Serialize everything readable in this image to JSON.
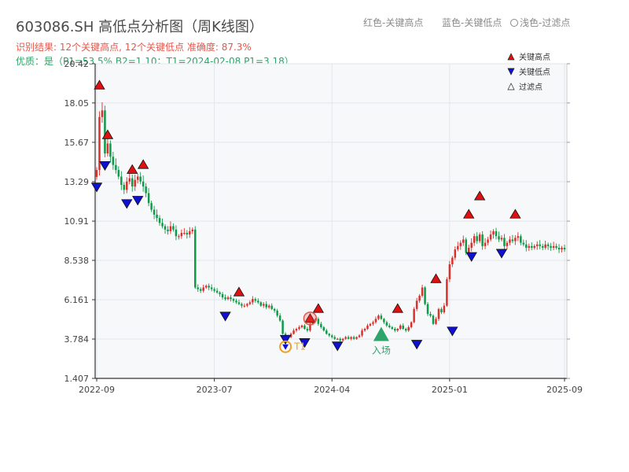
{
  "header": {
    "title": "603086.SH 高低点分析图（周K线图）",
    "result_line": "识别结果: 12个关键高点, 12个关键低点  准确度: 87.3%",
    "quality_line": "优质：是（P1=53.5%  B2=1.10；T1=2024-02-08 P1=3.18）",
    "legend_red": "红色-关键高点",
    "legend_blue": "蓝色-关键低点",
    "legend_light": "浅色-过滤点"
  },
  "colors": {
    "up": "#d9302b",
    "down": "#0d9b48",
    "high_marker": "#e01010",
    "low_marker": "#1010d0",
    "t1": "#f0a020",
    "entry": "#2ea36a",
    "plot_bg": "#f7f8fa",
    "grid": "#e3e6ea"
  },
  "chart_data": {
    "type": "candlestick",
    "title": "",
    "xlabel": "",
    "ylabel": "",
    "ylim": [
      1.407,
      20.42
    ],
    "y_ticks": [
      "20.42",
      "18.05",
      "15.67",
      "13.29",
      "10.91",
      "8.538",
      "6.161",
      "3.784",
      "1.407"
    ],
    "y_tick_values": [
      20.42,
      18.05,
      15.67,
      13.29,
      10.91,
      8.538,
      6.161,
      3.784,
      1.407
    ],
    "x_ticks": [
      "2022-09",
      "2023-07",
      "2024-04",
      "2025-01",
      "2025-09"
    ],
    "x_tick_index": [
      0,
      43,
      86,
      129,
      171
    ],
    "series_weeks": 172,
    "legend": [
      {
        "label": "关键高点",
        "marker": "triangle-up",
        "color": "#e01010"
      },
      {
        "label": "关键低点",
        "marker": "triangle-down",
        "color": "#1010d0"
      },
      {
        "label": "过滤点",
        "marker": "triangle-up-outline",
        "color": "#ffffff"
      }
    ],
    "legend_position": "top-right",
    "close_anchors": [
      [
        0,
        14.0
      ],
      [
        1,
        17.2
      ],
      [
        2,
        17.6
      ],
      [
        3,
        15.0
      ],
      [
        4,
        15.6
      ],
      [
        5,
        14.8
      ],
      [
        6,
        14.3
      ],
      [
        7,
        14.0
      ],
      [
        8,
        13.6
      ],
      [
        9,
        13.1
      ],
      [
        10,
        12.8
      ],
      [
        11,
        13.3
      ],
      [
        12,
        13.5
      ],
      [
        13,
        13.0
      ],
      [
        14,
        13.4
      ],
      [
        15,
        13.6
      ],
      [
        16,
        13.3
      ],
      [
        17,
        13.0
      ],
      [
        18,
        12.6
      ],
      [
        19,
        12.0
      ],
      [
        20,
        11.6
      ],
      [
        21,
        11.3
      ],
      [
        22,
        11.1
      ],
      [
        23,
        10.8
      ],
      [
        24,
        10.6
      ],
      [
        25,
        10.4
      ],
      [
        26,
        10.3
      ],
      [
        27,
        10.6
      ],
      [
        28,
        10.4
      ],
      [
        29,
        10.0
      ],
      [
        30,
        10.0
      ],
      [
        31,
        10.2
      ],
      [
        32,
        10.2
      ],
      [
        33,
        10.1
      ],
      [
        34,
        10.3
      ],
      [
        35,
        10.4
      ],
      [
        36,
        6.9
      ],
      [
        37,
        6.8
      ],
      [
        38,
        6.7
      ],
      [
        39,
        6.9
      ],
      [
        40,
        7.0
      ],
      [
        41,
        6.9
      ],
      [
        42,
        6.8
      ],
      [
        43,
        6.7
      ],
      [
        44,
        6.6
      ],
      [
        45,
        6.5
      ],
      [
        46,
        6.3
      ],
      [
        47,
        6.2
      ],
      [
        48,
        6.3
      ],
      [
        49,
        6.2
      ],
      [
        50,
        6.1
      ],
      [
        51,
        6.0
      ],
      [
        52,
        5.9
      ],
      [
        53,
        5.8
      ],
      [
        54,
        5.8
      ],
      [
        55,
        5.9
      ],
      [
        56,
        6.0
      ],
      [
        57,
        6.2
      ],
      [
        58,
        6.1
      ],
      [
        59,
        6.0
      ],
      [
        60,
        5.8
      ],
      [
        61,
        5.9
      ],
      [
        62,
        5.7
      ],
      [
        63,
        5.8
      ],
      [
        64,
        5.6
      ],
      [
        65,
        5.5
      ],
      [
        66,
        5.2
      ],
      [
        67,
        4.9
      ],
      [
        68,
        4.1
      ],
      [
        69,
        4.0
      ],
      [
        70,
        3.9
      ],
      [
        71,
        4.1
      ],
      [
        72,
        4.3
      ],
      [
        73,
        4.4
      ],
      [
        74,
        4.5
      ],
      [
        75,
        4.6
      ],
      [
        76,
        4.4
      ],
      [
        77,
        4.3
      ],
      [
        78,
        4.7
      ],
      [
        79,
        4.9
      ],
      [
        80,
        5.0
      ],
      [
        81,
        4.7
      ],
      [
        82,
        4.5
      ],
      [
        83,
        4.3
      ],
      [
        84,
        4.1
      ],
      [
        85,
        4.0
      ],
      [
        86,
        3.9
      ],
      [
        87,
        3.8
      ],
      [
        88,
        3.8
      ],
      [
        89,
        3.7
      ],
      [
        90,
        3.8
      ],
      [
        91,
        3.9
      ],
      [
        92,
        3.8
      ],
      [
        93,
        3.9
      ],
      [
        94,
        3.8
      ],
      [
        95,
        3.9
      ],
      [
        96,
        4.0
      ],
      [
        97,
        4.3
      ],
      [
        98,
        4.4
      ],
      [
        99,
        4.6
      ],
      [
        100,
        4.7
      ],
      [
        101,
        4.8
      ],
      [
        102,
        5.0
      ],
      [
        103,
        5.2
      ],
      [
        104,
        5.0
      ],
      [
        105,
        4.8
      ],
      [
        106,
        4.6
      ],
      [
        107,
        4.5
      ],
      [
        108,
        4.4
      ],
      [
        109,
        4.3
      ],
      [
        110,
        4.4
      ],
      [
        111,
        4.6
      ],
      [
        112,
        4.4
      ],
      [
        113,
        4.3
      ],
      [
        114,
        4.5
      ],
      [
        115,
        4.8
      ],
      [
        116,
        5.6
      ],
      [
        117,
        6.1
      ],
      [
        118,
        6.4
      ],
      [
        119,
        6.9
      ],
      [
        120,
        5.9
      ],
      [
        121,
        5.3
      ],
      [
        122,
        5.2
      ],
      [
        123,
        4.7
      ],
      [
        124,
        5.0
      ],
      [
        125,
        5.6
      ],
      [
        126,
        5.4
      ],
      [
        127,
        5.8
      ],
      [
        128,
        7.4
      ],
      [
        129,
        8.3
      ],
      [
        130,
        8.7
      ],
      [
        131,
        9.2
      ],
      [
        132,
        9.4
      ],
      [
        133,
        9.6
      ],
      [
        134,
        9.8
      ],
      [
        135,
        9.0
      ],
      [
        136,
        9.3
      ],
      [
        137,
        9.6
      ],
      [
        138,
        10.0
      ],
      [
        139,
        9.7
      ],
      [
        140,
        10.1
      ],
      [
        141,
        9.4
      ],
      [
        142,
        9.6
      ],
      [
        143,
        9.8
      ],
      [
        144,
        10.1
      ],
      [
        145,
        10.3
      ],
      [
        146,
        10.0
      ],
      [
        147,
        9.8
      ],
      [
        148,
        9.9
      ],
      [
        149,
        9.4
      ],
      [
        150,
        9.6
      ],
      [
        151,
        9.8
      ],
      [
        152,
        9.7
      ],
      [
        153,
        9.9
      ],
      [
        154,
        10.0
      ],
      [
        155,
        9.6
      ],
      [
        156,
        9.5
      ],
      [
        157,
        9.3
      ],
      [
        158,
        9.4
      ],
      [
        159,
        9.3
      ],
      [
        160,
        9.4
      ],
      [
        161,
        9.5
      ],
      [
        162,
        9.4
      ],
      [
        163,
        9.3
      ],
      [
        164,
        9.5
      ],
      [
        165,
        9.4
      ],
      [
        166,
        9.3
      ],
      [
        167,
        9.4
      ],
      [
        168,
        9.3
      ],
      [
        169,
        9.2
      ],
      [
        170,
        9.3
      ],
      [
        171,
        9.2
      ]
    ],
    "key_highs": [
      {
        "week": 1,
        "value": 18.7
      },
      {
        "week": 4,
        "value": 15.7
      },
      {
        "week": 13,
        "value": 13.6
      },
      {
        "week": 17,
        "value": 13.9
      },
      {
        "week": 52,
        "value": 6.2
      },
      {
        "week": 78,
        "value": 4.6
      },
      {
        "week": 81,
        "value": 5.2
      },
      {
        "week": 110,
        "value": 5.2
      },
      {
        "week": 124,
        "value": 7.0
      },
      {
        "week": 136,
        "value": 10.9
      },
      {
        "week": 140,
        "value": 12.0
      },
      {
        "week": 153,
        "value": 10.9
      }
    ],
    "key_lows": [
      {
        "week": 0,
        "value": 13.4
      },
      {
        "week": 3,
        "value": 14.7
      },
      {
        "week": 11,
        "value": 12.4
      },
      {
        "week": 15,
        "value": 12.6
      },
      {
        "week": 47,
        "value": 5.6
      },
      {
        "week": 69,
        "value": 4.2
      },
      {
        "week": 76,
        "value": 4.0
      },
      {
        "week": 88,
        "value": 3.8
      },
      {
        "week": 117,
        "value": 3.9
      },
      {
        "week": 130,
        "value": 4.7
      },
      {
        "week": 137,
        "value": 9.2
      },
      {
        "week": 148,
        "value": 9.4
      }
    ],
    "t1": {
      "week": 69,
      "value": 3.18,
      "label": "T1"
    },
    "entry": {
      "week": 104,
      "value": 3.95,
      "label": "入场"
    }
  }
}
